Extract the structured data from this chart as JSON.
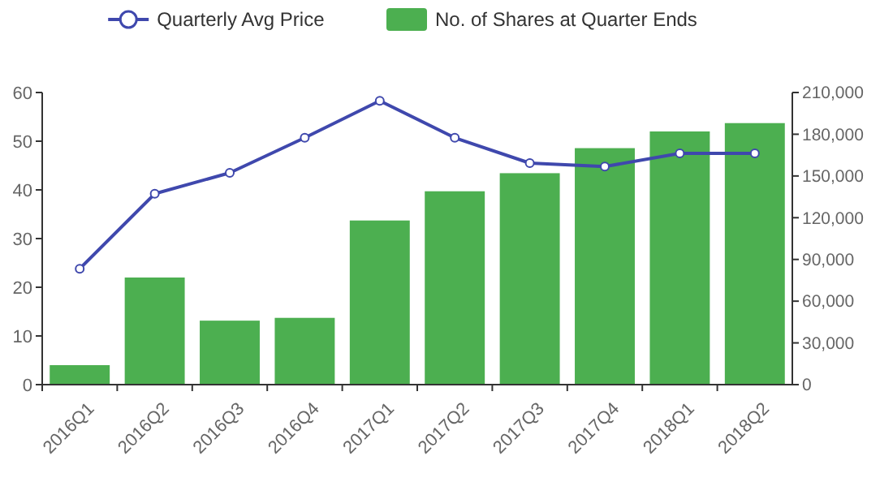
{
  "chart_data": {
    "type": "bar",
    "categories": [
      "2016Q1",
      "2016Q2",
      "2016Q3",
      "2016Q4",
      "2017Q1",
      "2017Q2",
      "2017Q3",
      "2017Q4",
      "2018Q1",
      "2018Q2"
    ],
    "series": [
      {
        "name": "Quarterly Avg Price",
        "type": "line",
        "color": "#3f48ad",
        "marker": "circle",
        "values": [
          23.8,
          39.2,
          43.5,
          50.7,
          58.3,
          50.7,
          45.5,
          44.8,
          47.5,
          47.5
        ]
      },
      {
        "name": "No. of Shares at Quarter Ends",
        "axis": "y2",
        "color": "#4caf50",
        "values": [
          14000,
          77000,
          46000,
          48000,
          118000,
          139000,
          152000,
          170000,
          182000,
          188000
        ]
      }
    ],
    "ylim": [
      0,
      60
    ],
    "yticks": [
      0,
      10,
      20,
      30,
      40,
      50,
      60
    ],
    "y2lim": [
      0,
      210000
    ],
    "y2ticks": [
      {
        "value": 0,
        "label": "0"
      },
      {
        "value": 30000,
        "label": "30,000"
      },
      {
        "value": 60000,
        "label": "60,000"
      },
      {
        "value": 90000,
        "label": "90,000"
      },
      {
        "value": 120000,
        "label": "120,000"
      },
      {
        "value": 150000,
        "label": "150,000"
      },
      {
        "value": 180000,
        "label": "180,000"
      },
      {
        "value": 210000,
        "label": "210,000"
      }
    ],
    "legend": "top",
    "grid": false
  }
}
